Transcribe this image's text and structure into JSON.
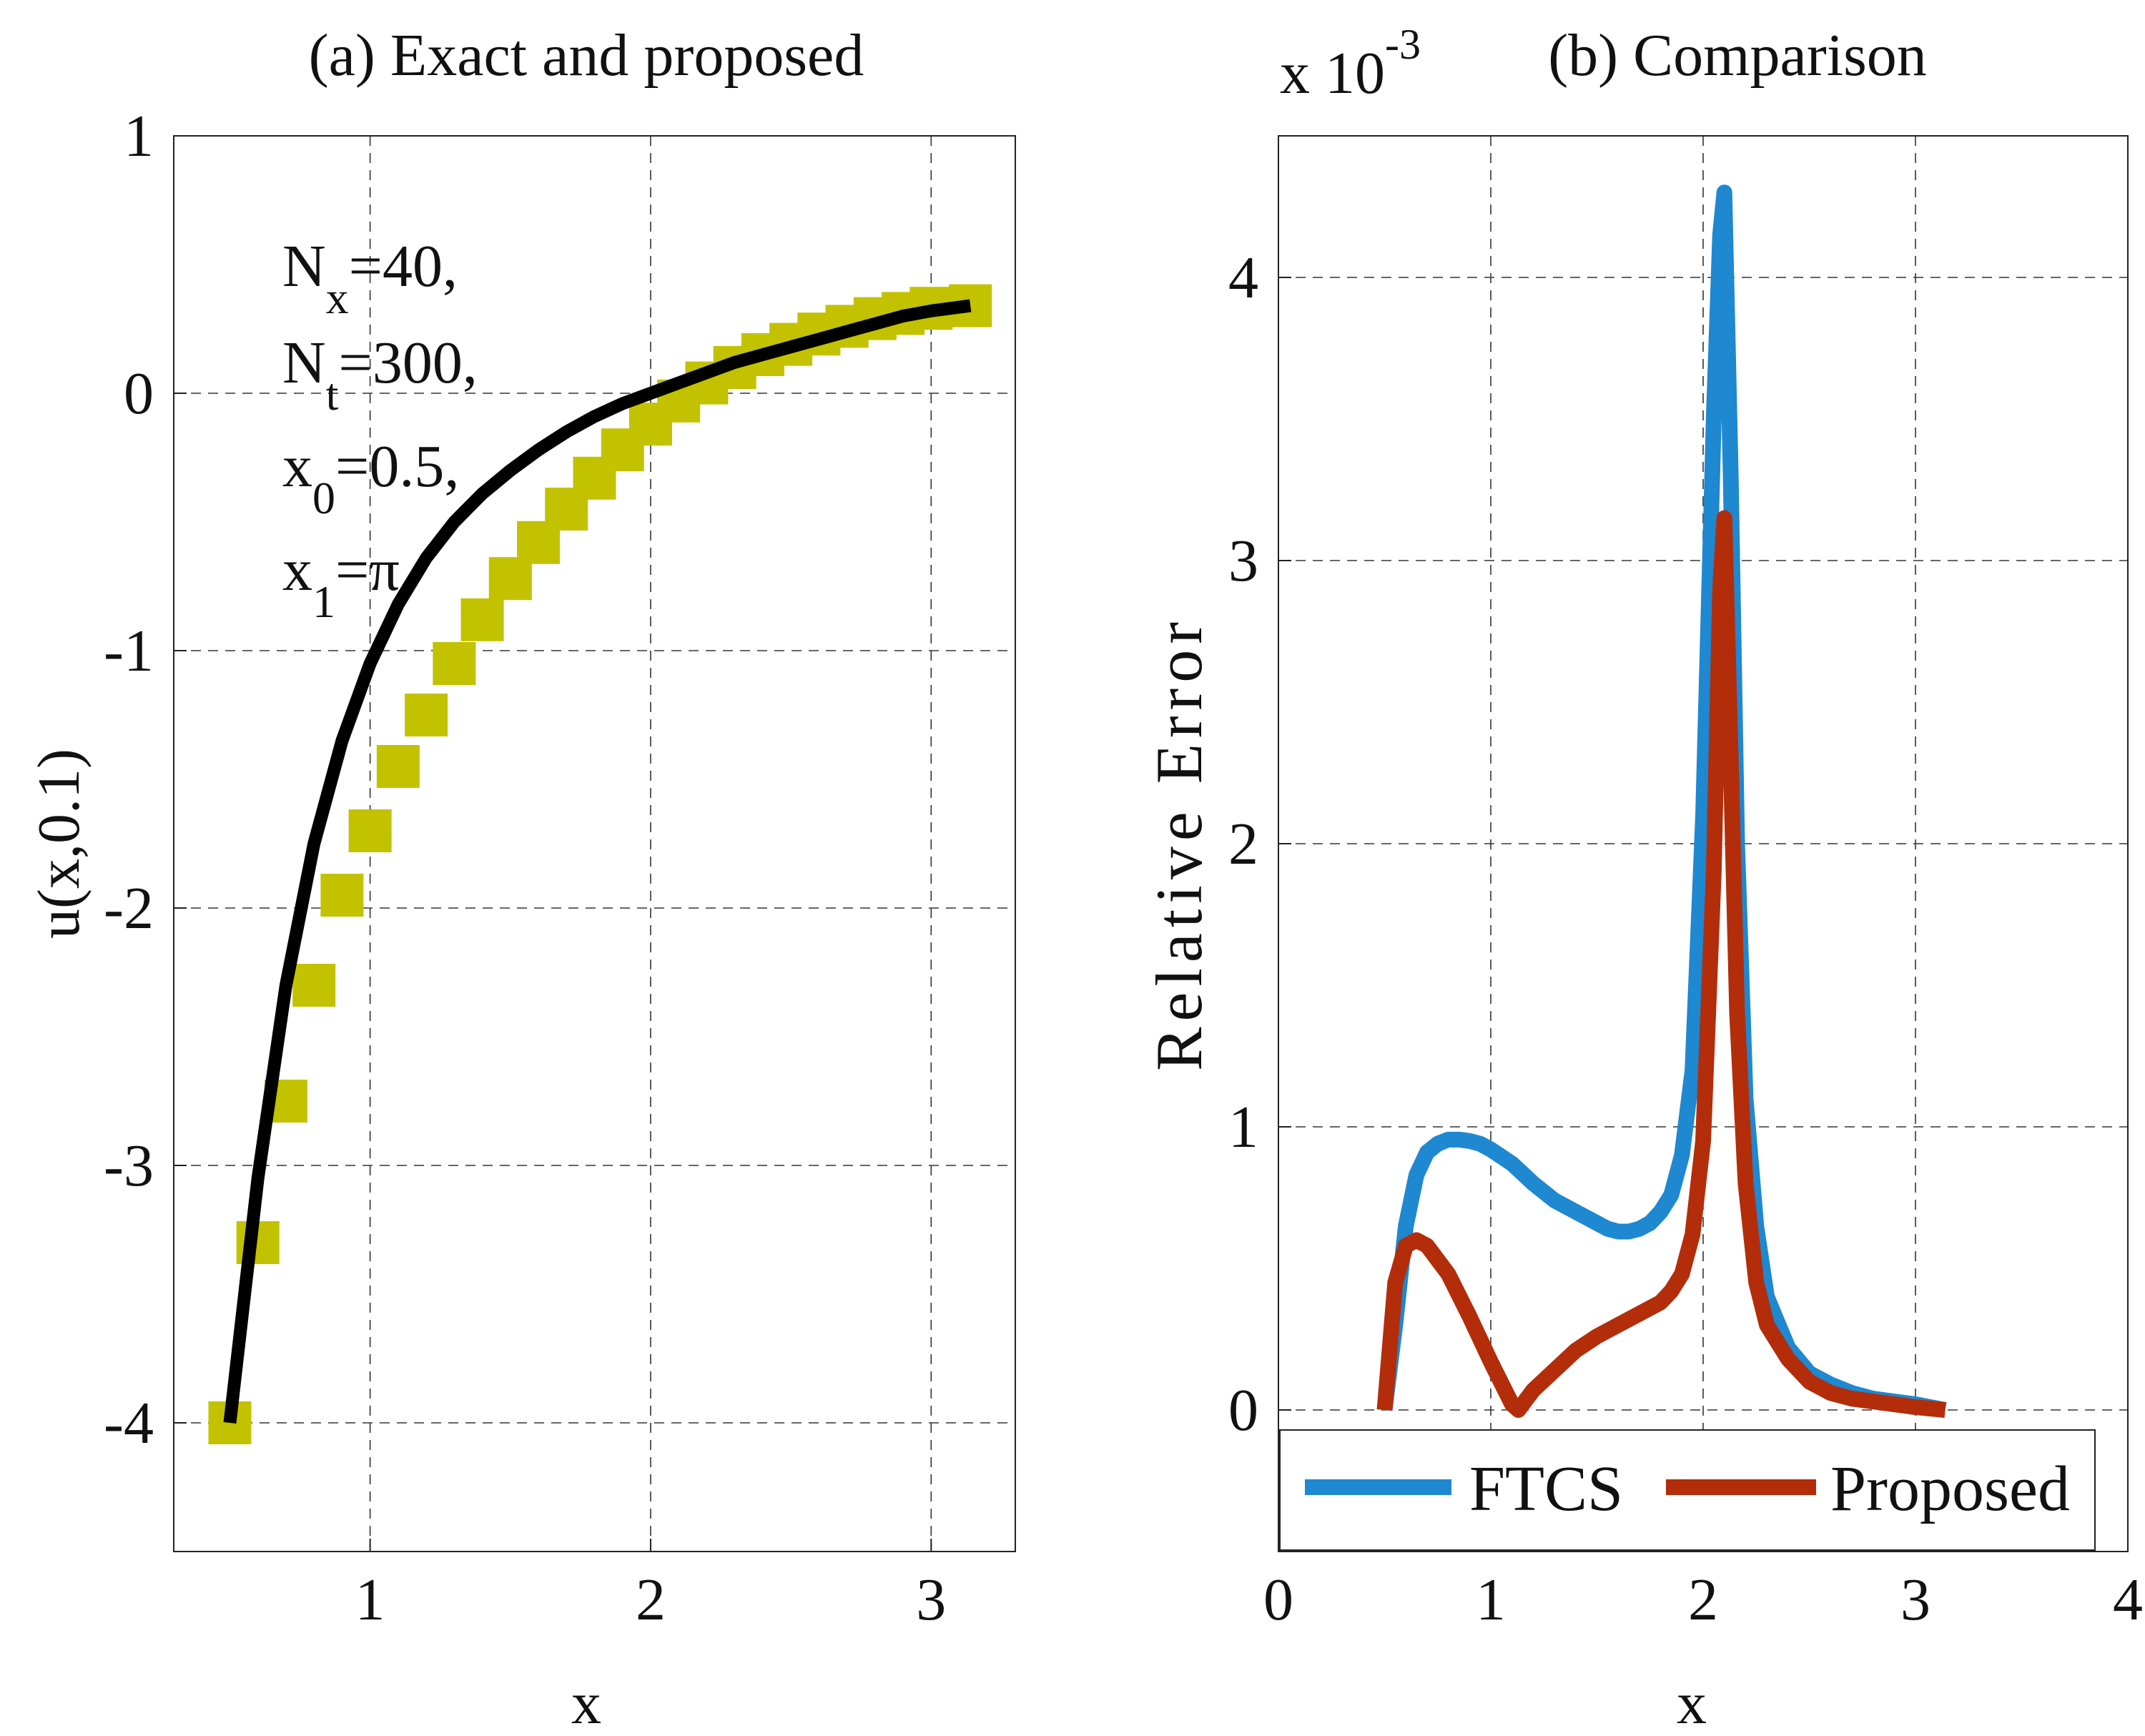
{
  "chart_data": [
    {
      "type": "line",
      "title": "(a) Exact and proposed",
      "xlabel": "x",
      "ylabel": "u(x,0.1)",
      "xlim": [
        0.3,
        3.3
      ],
      "ylim": [
        -4.5,
        1
      ],
      "xticks": [
        1,
        2,
        3
      ],
      "yticks": [
        -4,
        -3,
        -2,
        -1,
        0,
        1
      ],
      "xtick_labels": [
        "1",
        "2",
        "3"
      ],
      "ytick_labels": [
        "-4",
        "-3",
        "-2",
        "-1",
        "0",
        "1"
      ],
      "grid": true,
      "annotation": {
        "lines": [
          {
            "base": "N",
            "sub": "x",
            "tail": "=40,"
          },
          {
            "base": "N",
            "sub": "t",
            "tail": "=300,"
          },
          {
            "base": "x",
            "sub": "0",
            "tail": "=0.5,"
          },
          {
            "base": "x",
            "sub": "1",
            "tail": "=π"
          }
        ]
      },
      "series": [
        {
          "name": "Exact",
          "marker": "square",
          "color": "#c2c200",
          "x": [
            0.5,
            0.6,
            0.7,
            0.8,
            0.9,
            1.0,
            1.1,
            1.2,
            1.3,
            1.4,
            1.5,
            1.6,
            1.7,
            1.8,
            1.9,
            2.0,
            2.1,
            2.2,
            2.3,
            2.4,
            2.5,
            2.6,
            2.7,
            2.8,
            2.9,
            3.0,
            3.14
          ],
          "y": [
            -4.0,
            -3.3,
            -2.75,
            -2.3,
            -1.95,
            -1.7,
            -1.45,
            -1.25,
            -1.05,
            -0.88,
            -0.72,
            -0.58,
            -0.45,
            -0.33,
            -0.22,
            -0.12,
            -0.03,
            0.04,
            0.1,
            0.15,
            0.19,
            0.23,
            0.26,
            0.29,
            0.31,
            0.33,
            0.34
          ]
        },
        {
          "name": "Proposed",
          "marker": "none",
          "color": "#000000",
          "x": [
            0.5,
            0.6,
            0.7,
            0.8,
            0.9,
            1.0,
            1.1,
            1.2,
            1.3,
            1.4,
            1.5,
            1.6,
            1.7,
            1.8,
            1.9,
            2.0,
            2.1,
            2.2,
            2.3,
            2.4,
            2.5,
            2.6,
            2.7,
            2.8,
            2.9,
            3.0,
            3.14
          ],
          "y": [
            -4.0,
            -3.05,
            -2.3,
            -1.75,
            -1.35,
            -1.05,
            -0.82,
            -0.64,
            -0.5,
            -0.39,
            -0.3,
            -0.22,
            -0.15,
            -0.09,
            -0.04,
            0.0,
            0.04,
            0.08,
            0.12,
            0.15,
            0.18,
            0.21,
            0.24,
            0.27,
            0.3,
            0.32,
            0.34
          ]
        }
      ]
    },
    {
      "type": "line",
      "title": "(b) Comparison",
      "exponent_label": "x 10",
      "exponent_power": "-3",
      "xlabel": "x",
      "ylabel": "Relative Error",
      "xlim": [
        0,
        4
      ],
      "ylim": [
        -0.5,
        4.5
      ],
      "xticks": [
        0,
        1,
        2,
        3,
        4
      ],
      "yticks": [
        0,
        1,
        2,
        3,
        4
      ],
      "xtick_labels": [
        "0",
        "1",
        "2",
        "3",
        "4"
      ],
      "ytick_labels": [
        "0",
        "1",
        "2",
        "3",
        "4"
      ],
      "grid": true,
      "legend_position": "bottom",
      "series": [
        {
          "name": "FTCS",
          "color": "#1e88d0",
          "x": [
            0.5,
            0.55,
            0.6,
            0.65,
            0.7,
            0.75,
            0.8,
            0.85,
            0.9,
            0.95,
            1.0,
            1.1,
            1.2,
            1.3,
            1.4,
            1.5,
            1.55,
            1.6,
            1.65,
            1.7,
            1.75,
            1.8,
            1.85,
            1.9,
            1.95,
            2.0,
            2.05,
            2.08,
            2.1,
            2.13,
            2.16,
            2.2,
            2.25,
            2.3,
            2.4,
            2.5,
            2.6,
            2.7,
            2.8,
            2.9,
            3.0,
            3.14
          ],
          "y": [
            0.0,
            0.3,
            0.65,
            0.83,
            0.91,
            0.94,
            0.955,
            0.955,
            0.95,
            0.94,
            0.92,
            0.87,
            0.8,
            0.74,
            0.7,
            0.66,
            0.64,
            0.63,
            0.63,
            0.64,
            0.66,
            0.7,
            0.76,
            0.9,
            1.2,
            2.1,
            3.5,
            4.15,
            4.3,
            3.3,
            2.0,
            1.1,
            0.65,
            0.4,
            0.22,
            0.13,
            0.09,
            0.06,
            0.04,
            0.03,
            0.02,
            0.0
          ]
        },
        {
          "name": "Proposed",
          "color": "#b32d0a",
          "x": [
            0.5,
            0.55,
            0.6,
            0.65,
            0.7,
            0.8,
            0.9,
            1.0,
            1.1,
            1.13,
            1.2,
            1.3,
            1.4,
            1.5,
            1.6,
            1.7,
            1.8,
            1.85,
            1.9,
            1.95,
            2.0,
            2.05,
            2.08,
            2.1,
            2.13,
            2.16,
            2.2,
            2.25,
            2.3,
            2.4,
            2.5,
            2.6,
            2.7,
            2.8,
            2.9,
            3.0,
            3.14
          ],
          "y": [
            0.0,
            0.45,
            0.58,
            0.6,
            0.58,
            0.48,
            0.33,
            0.17,
            0.02,
            0.0,
            0.07,
            0.14,
            0.21,
            0.26,
            0.3,
            0.34,
            0.38,
            0.42,
            0.48,
            0.62,
            0.95,
            1.9,
            2.9,
            3.15,
            2.3,
            1.4,
            0.8,
            0.45,
            0.3,
            0.18,
            0.1,
            0.06,
            0.04,
            0.03,
            0.02,
            0.01,
            0.0
          ]
        }
      ]
    }
  ]
}
